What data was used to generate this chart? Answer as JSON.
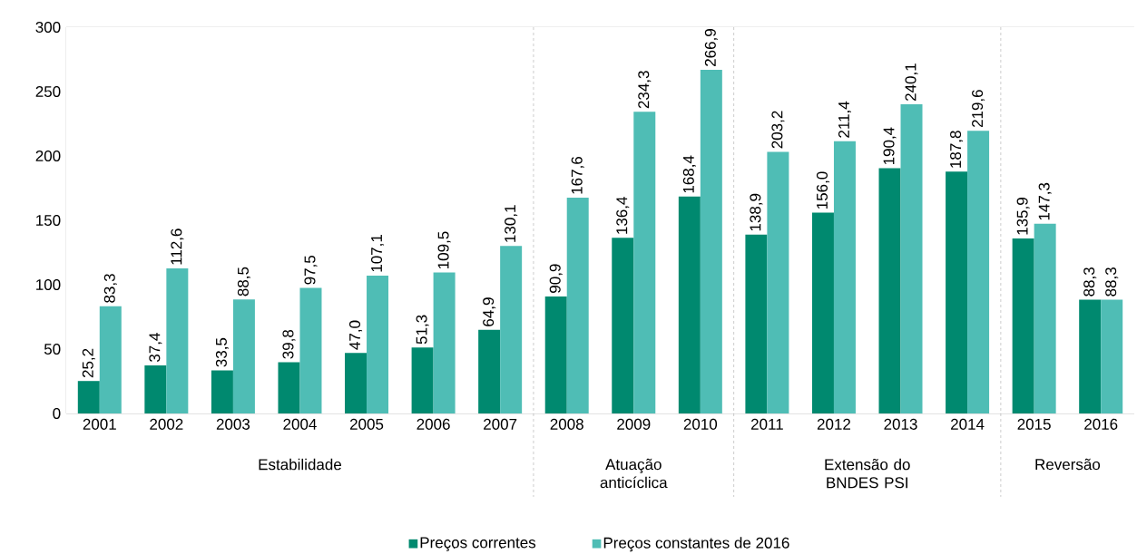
{
  "chart_data": {
    "type": "bar",
    "categories": [
      "2001",
      "2002",
      "2003",
      "2004",
      "2005",
      "2006",
      "2007",
      "2008",
      "2009",
      "2010",
      "2011",
      "2012",
      "2013",
      "2014",
      "2015",
      "2016"
    ],
    "series": [
      {
        "name": "Preços correntes",
        "color": "#00896f",
        "values": [
          25.2,
          37.4,
          33.5,
          39.8,
          47.0,
          51.3,
          64.9,
          90.9,
          136.4,
          168.4,
          138.9,
          156.0,
          190.4,
          187.8,
          135.9,
          88.3
        ],
        "value_labels": [
          "25,2",
          "37,4",
          "33,5",
          "39,8",
          "47,0",
          "51,3",
          "64,9",
          "90,9",
          "136,4",
          "168,4",
          "138,9",
          "156,0",
          "190,4",
          "187,8",
          "135,9",
          "88,3"
        ]
      },
      {
        "name": "Preços constantes de 2016",
        "color": "#4fbdb5",
        "values": [
          83.3,
          112.6,
          88.5,
          97.5,
          107.1,
          109.5,
          130.1,
          167.6,
          234.3,
          266.9,
          203.2,
          211.4,
          240.1,
          219.6,
          147.3,
          88.3
        ],
        "value_labels": [
          "83,3",
          "112,6",
          "88,5",
          "97,5",
          "107,1",
          "109,5",
          "130,1",
          "167,6",
          "234,3",
          "266,9",
          "203,2",
          "211,4",
          "240,1",
          "219,6",
          "147,3",
          "88,3"
        ]
      }
    ],
    "ylim": [
      0,
      300
    ],
    "yticks": [
      0,
      50,
      100,
      150,
      200,
      250,
      300
    ],
    "grid": "y",
    "legend": "bottom",
    "bands": [
      {
        "axis": "x",
        "from": "2001",
        "to": "2007",
        "label": "Estabilidade",
        "color": "#ffffff"
      },
      {
        "axis": "x",
        "from": "2008",
        "to": "2010",
        "label": "Atuação anticíclica",
        "color": "#ffffff"
      },
      {
        "axis": "x",
        "from": "2011",
        "to": "2014",
        "label": "Extensão do BNDES PSI",
        "color": "#ffffff"
      },
      {
        "axis": "x",
        "from": "2015",
        "to": "2016",
        "label": "Reversão",
        "color": "#ffffff"
      }
    ]
  }
}
